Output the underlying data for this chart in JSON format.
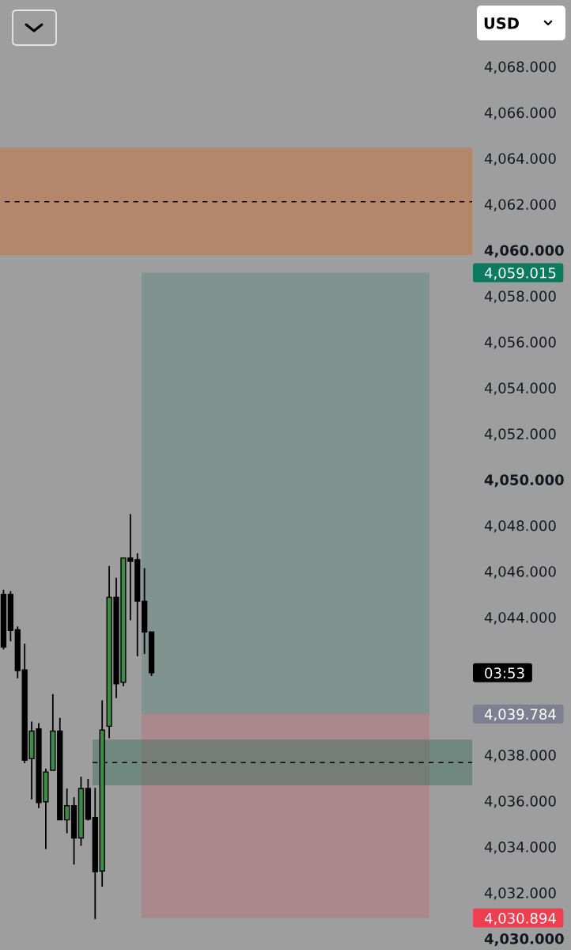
{
  "chart_data": {
    "type": "candlestick",
    "categories": [
      null,
      null,
      null,
      null,
      null,
      null,
      null,
      null,
      null,
      null,
      null,
      null,
      null,
      null,
      null,
      null,
      null,
      null,
      null,
      null,
      null,
      null,
      null,
      null,
      null,
      null,
      null,
      null,
      null,
      null,
      null,
      null,
      null,
      null,
      null,
      null,
      null,
      null,
      null,
      null,
      null,
      null,
      null,
      null,
      null,
      null,
      null,
      null,
      null,
      null,
      null,
      null,
      null,
      null,
      null,
      null,
      null,
      null,
      null,
      null,
      null,
      null,
      null,
      null,
      null,
      null,
      null
    ],
    "ohlc": [
      [
        4045.0,
        4045.2,
        4042.6,
        4042.7
      ],
      [
        4045.0,
        4045.14,
        4042.95,
        4043.43
      ],
      [
        4043.46,
        4043.6,
        4041.34,
        4041.68
      ],
      [
        4041.71,
        4042.85,
        4037.64,
        4037.77
      ],
      [
        4037.84,
        4039.45,
        4036.06,
        4039.04
      ],
      [
        4039.14,
        4039.38,
        4035.68,
        4035.92
      ],
      [
        4035.96,
        4037.4,
        4033.9,
        4037.26
      ],
      [
        4037.33,
        4040.65,
        4037.33,
        4039.04
      ],
      [
        4039.04,
        4039.62,
        4035.17,
        4035.17
      ],
      [
        4035.17,
        4036.54,
        4034.59,
        4035.79
      ],
      [
        4035.79,
        4036.16,
        4033.22,
        4034.38
      ],
      [
        4034.38,
        4037.05,
        4034.04,
        4036.54
      ],
      [
        4036.54,
        4036.95,
        4035.14,
        4035.2
      ],
      [
        4035.27,
        4036.57,
        4030.85,
        4032.91
      ],
      [
        4032.94,
        4040.38,
        4032.26,
        4039.08
      ],
      [
        4039.25,
        4046.24,
        4038.73,
        4044.87
      ],
      [
        4044.87,
        4045.72,
        4040.48,
        4041.1
      ],
      [
        4041.17,
        4046.58,
        4041.0,
        4046.58
      ],
      [
        4046.58,
        4048.5,
        4043.87,
        4046.44
      ],
      [
        4046.51,
        4046.79,
        4042.3,
        4044.7
      ],
      [
        4044.7,
        4046.14,
        4042.4,
        4043.36
      ],
      [
        4043.36,
        4043.36,
        4041.44,
        4041.58
      ],
      null,
      null,
      null,
      null,
      null,
      null,
      null,
      null,
      null,
      null,
      null,
      null,
      null,
      null,
      null,
      null,
      null,
      null,
      null,
      null,
      null,
      null,
      null,
      null,
      null,
      null,
      null,
      null,
      null,
      null,
      null,
      null,
      null,
      null,
      null,
      null,
      null,
      null,
      null,
      null,
      null,
      null,
      null,
      null,
      null
    ],
    "colors": [
      "#000000",
      "#000000",
      "#000000",
      "#000000",
      "#3e8c48",
      "#000000",
      "#3e8c48",
      "#3e8c48",
      "#000000",
      "#3e8c48",
      "#000000",
      "#3e8c48",
      "#000000",
      "#000000",
      "#3e8c48",
      "#3e8c48",
      "#000000",
      "#3e8c48",
      "#000000",
      "#000000",
      "#000000",
      "#000000",
      null,
      null,
      null,
      null,
      null,
      null,
      null,
      null,
      null,
      null,
      null,
      null,
      null,
      null,
      null,
      null,
      null,
      null,
      null,
      null,
      null,
      null,
      null,
      null,
      null,
      null,
      null,
      null,
      null,
      null,
      null,
      null,
      null,
      null,
      null,
      null,
      null,
      null,
      null,
      null,
      null,
      null,
      null,
      null,
      null
    ],
    "ylim": [
      4029.5,
      4070.9
    ],
    "yticks": [
      {
        "value": 4030,
        "label": "4,030.000"
      },
      {
        "value": 4032,
        "label": "4,032.000"
      },
      {
        "value": 4034,
        "label": "4,034.000"
      },
      {
        "value": 4036,
        "label": "4,036.000"
      },
      {
        "value": 4038,
        "label": "4,038.000"
      },
      {
        "value": 4044,
        "label": "4,044.000"
      },
      {
        "value": 4046,
        "label": "4,046.000"
      },
      {
        "value": 4048,
        "label": "4,048.000"
      },
      {
        "value": 4050,
        "label": "4,050.000"
      },
      {
        "value": 4052,
        "label": "4,052.000"
      },
      {
        "value": 4054,
        "label": "4,054.000"
      },
      {
        "value": 4056,
        "label": "4,056.000"
      },
      {
        "value": 4058,
        "label": "4,058.000"
      },
      {
        "value": 4060,
        "label": "4,060.000"
      },
      {
        "value": 4062,
        "label": "4,062.000"
      },
      {
        "value": 4064,
        "label": "4,064.000"
      },
      {
        "value": 4066,
        "label": "4,066.000"
      },
      {
        "value": 4068,
        "label": "4,068.000"
      }
    ],
    "tick_labels": "y",
    "ylabel": "USD",
    "bands": [
      {
        "axis": "y",
        "from": 4059.78,
        "to": 4064.47,
        "color": "#b4876d"
      },
      {
        "axis": "y",
        "from": 4039.784,
        "to": 4059.015,
        "color": "#80938f"
      },
      {
        "axis": "y",
        "from": 4039.784,
        "to": 4030.894,
        "color": "#aa888b"
      },
      {
        "axis": "y",
        "from": 4036.68,
        "to": 4038.67,
        "color": "#427262"
      }
    ],
    "ref_lines": [
      {
        "axis": "y",
        "value": 4062.11,
        "color": "#000000",
        "line_style": "dashed"
      },
      {
        "axis": "y",
        "value": 4037.67,
        "color": "#000000",
        "line_style": "dashed"
      }
    ],
    "annotations": [
      "4,059.015",
      "03:53",
      "4,039.784",
      "4,030.894"
    ]
  }
}
